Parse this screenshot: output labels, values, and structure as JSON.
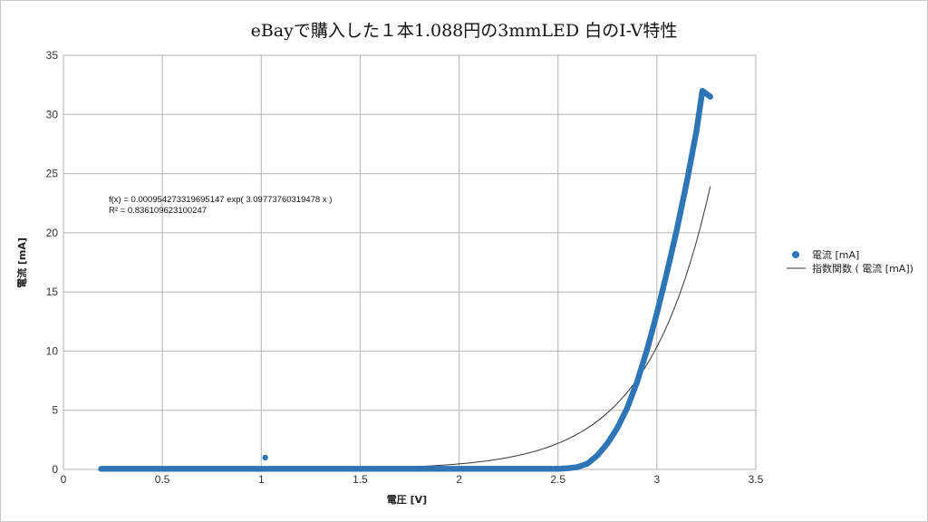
{
  "chart_data": {
    "type": "scatter",
    "title": "eBayで購入した１本1.088円の3mmLED 白のI-V特性",
    "xlabel": "電圧 [V]",
    "ylabel": "電流 [mA]",
    "xlim": [
      0,
      3.5
    ],
    "ylim": [
      0,
      35
    ],
    "xticks": [
      "0",
      "0.5",
      "1",
      "1.5",
      "2",
      "2.5",
      "3",
      "3.5"
    ],
    "yticks": [
      "0",
      "5",
      "10",
      "15",
      "20",
      "25",
      "30",
      "35"
    ],
    "grid": true,
    "legend_position": "right",
    "series": [
      {
        "name": "電流 [mA]",
        "kind": "scatter",
        "color": "#2e75b6",
        "points": [
          [
            0.19,
            0.05
          ],
          [
            0.3,
            0.05
          ],
          [
            0.5,
            0.05
          ],
          [
            0.7,
            0.05
          ],
          [
            0.9,
            0.05
          ],
          [
            1.02,
            1.0
          ],
          [
            1.1,
            0.05
          ],
          [
            1.3,
            0.05
          ],
          [
            1.5,
            0.05
          ],
          [
            1.7,
            0.05
          ],
          [
            1.9,
            0.05
          ],
          [
            2.1,
            0.05
          ],
          [
            2.3,
            0.05
          ],
          [
            2.5,
            0.05
          ],
          [
            2.55,
            0.1
          ],
          [
            2.6,
            0.2
          ],
          [
            2.65,
            0.5
          ],
          [
            2.7,
            1.2
          ],
          [
            2.75,
            2.2
          ],
          [
            2.8,
            3.5
          ],
          [
            2.85,
            5.2
          ],
          [
            2.9,
            7.4
          ],
          [
            2.95,
            10.1
          ],
          [
            3.0,
            13.2
          ],
          [
            3.05,
            16.6
          ],
          [
            3.1,
            20.2
          ],
          [
            3.15,
            24.2
          ],
          [
            3.2,
            28.6
          ],
          [
            3.23,
            32.0
          ],
          [
            3.27,
            31.5
          ]
        ]
      },
      {
        "name": "指数関数 ( 電流 [mA])",
        "kind": "trendline",
        "color": "#333333",
        "equation": "f(x) = 0.000954273319695147 exp( 3.09773760319478 x )",
        "r_squared": "R² = 0.836109623100247",
        "a": 0.000954273319695147,
        "b": 3.09773760319478,
        "x_range": [
          0.19,
          3.27
        ]
      }
    ]
  }
}
